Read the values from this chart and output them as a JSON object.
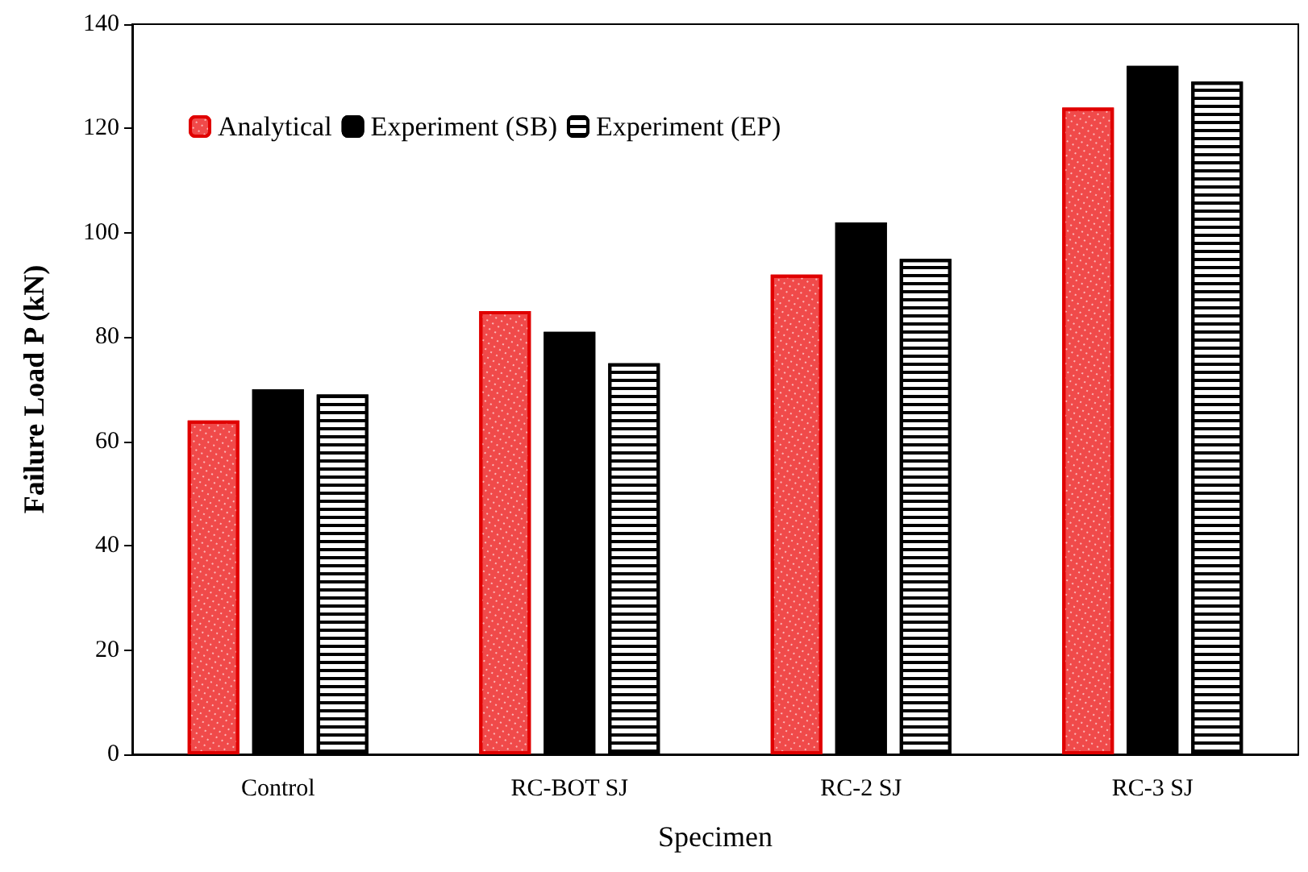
{
  "chart_data": {
    "type": "bar",
    "xlabel": "Specimen",
    "ylabel": "Failure Load P (kN)",
    "categories": [
      "Control",
      "RC-BOT SJ",
      "RC-2 SJ",
      "RC-3 SJ"
    ],
    "series": [
      {
        "name": "Analytical",
        "color": "#f04a4a",
        "values": [
          64,
          85,
          92,
          124
        ]
      },
      {
        "name": "Experiment (SB)",
        "color": "#000000",
        "values": [
          70,
          81,
          102,
          132
        ]
      },
      {
        "name": "Experiment (EP)",
        "color": "#ffffff",
        "values": [
          69,
          75,
          95,
          129
        ]
      }
    ],
    "ylim": [
      0,
      140
    ],
    "yticks": [
      0,
      20,
      40,
      60,
      80,
      100,
      120,
      140
    ],
    "grid": false,
    "legend": "top left"
  }
}
